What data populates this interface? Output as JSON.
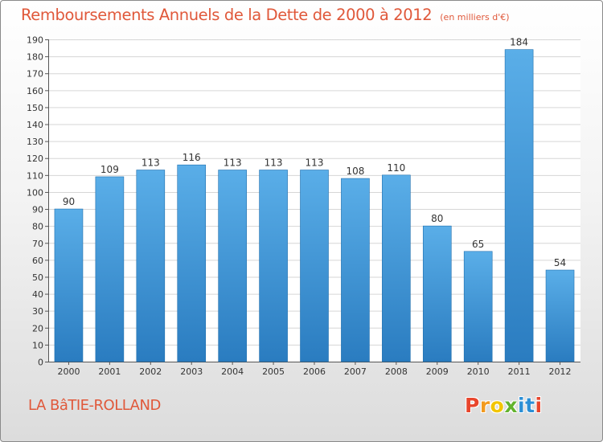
{
  "chart_data": {
    "type": "bar",
    "title": "Remboursements Annuels de la Dette de 2000 à 2012",
    "subtitle": "(en milliers d'€)",
    "categories": [
      "2000",
      "2001",
      "2002",
      "2003",
      "2004",
      "2005",
      "2006",
      "2007",
      "2008",
      "2009",
      "2010",
      "2011",
      "2012"
    ],
    "values": [
      90,
      109,
      113,
      116,
      113,
      113,
      113,
      108,
      110,
      80,
      65,
      184,
      54
    ],
    "ylim": [
      0,
      190
    ],
    "ytick_step": 10,
    "grid": true,
    "bar_color_light": "#5aaee8",
    "bar_color_dark": "#2a7cc0"
  },
  "footer": {
    "commune": "LA BâTIE-ROLLAND",
    "logo_letters": [
      "P",
      "r",
      "o",
      "x",
      "i",
      "t",
      "i"
    ],
    "logo_colors": [
      "#e8452c",
      "#f29a1e",
      "#f2c500",
      "#63b32e",
      "#2b8fd6",
      "#2b8fd6",
      "#e8452c"
    ]
  }
}
